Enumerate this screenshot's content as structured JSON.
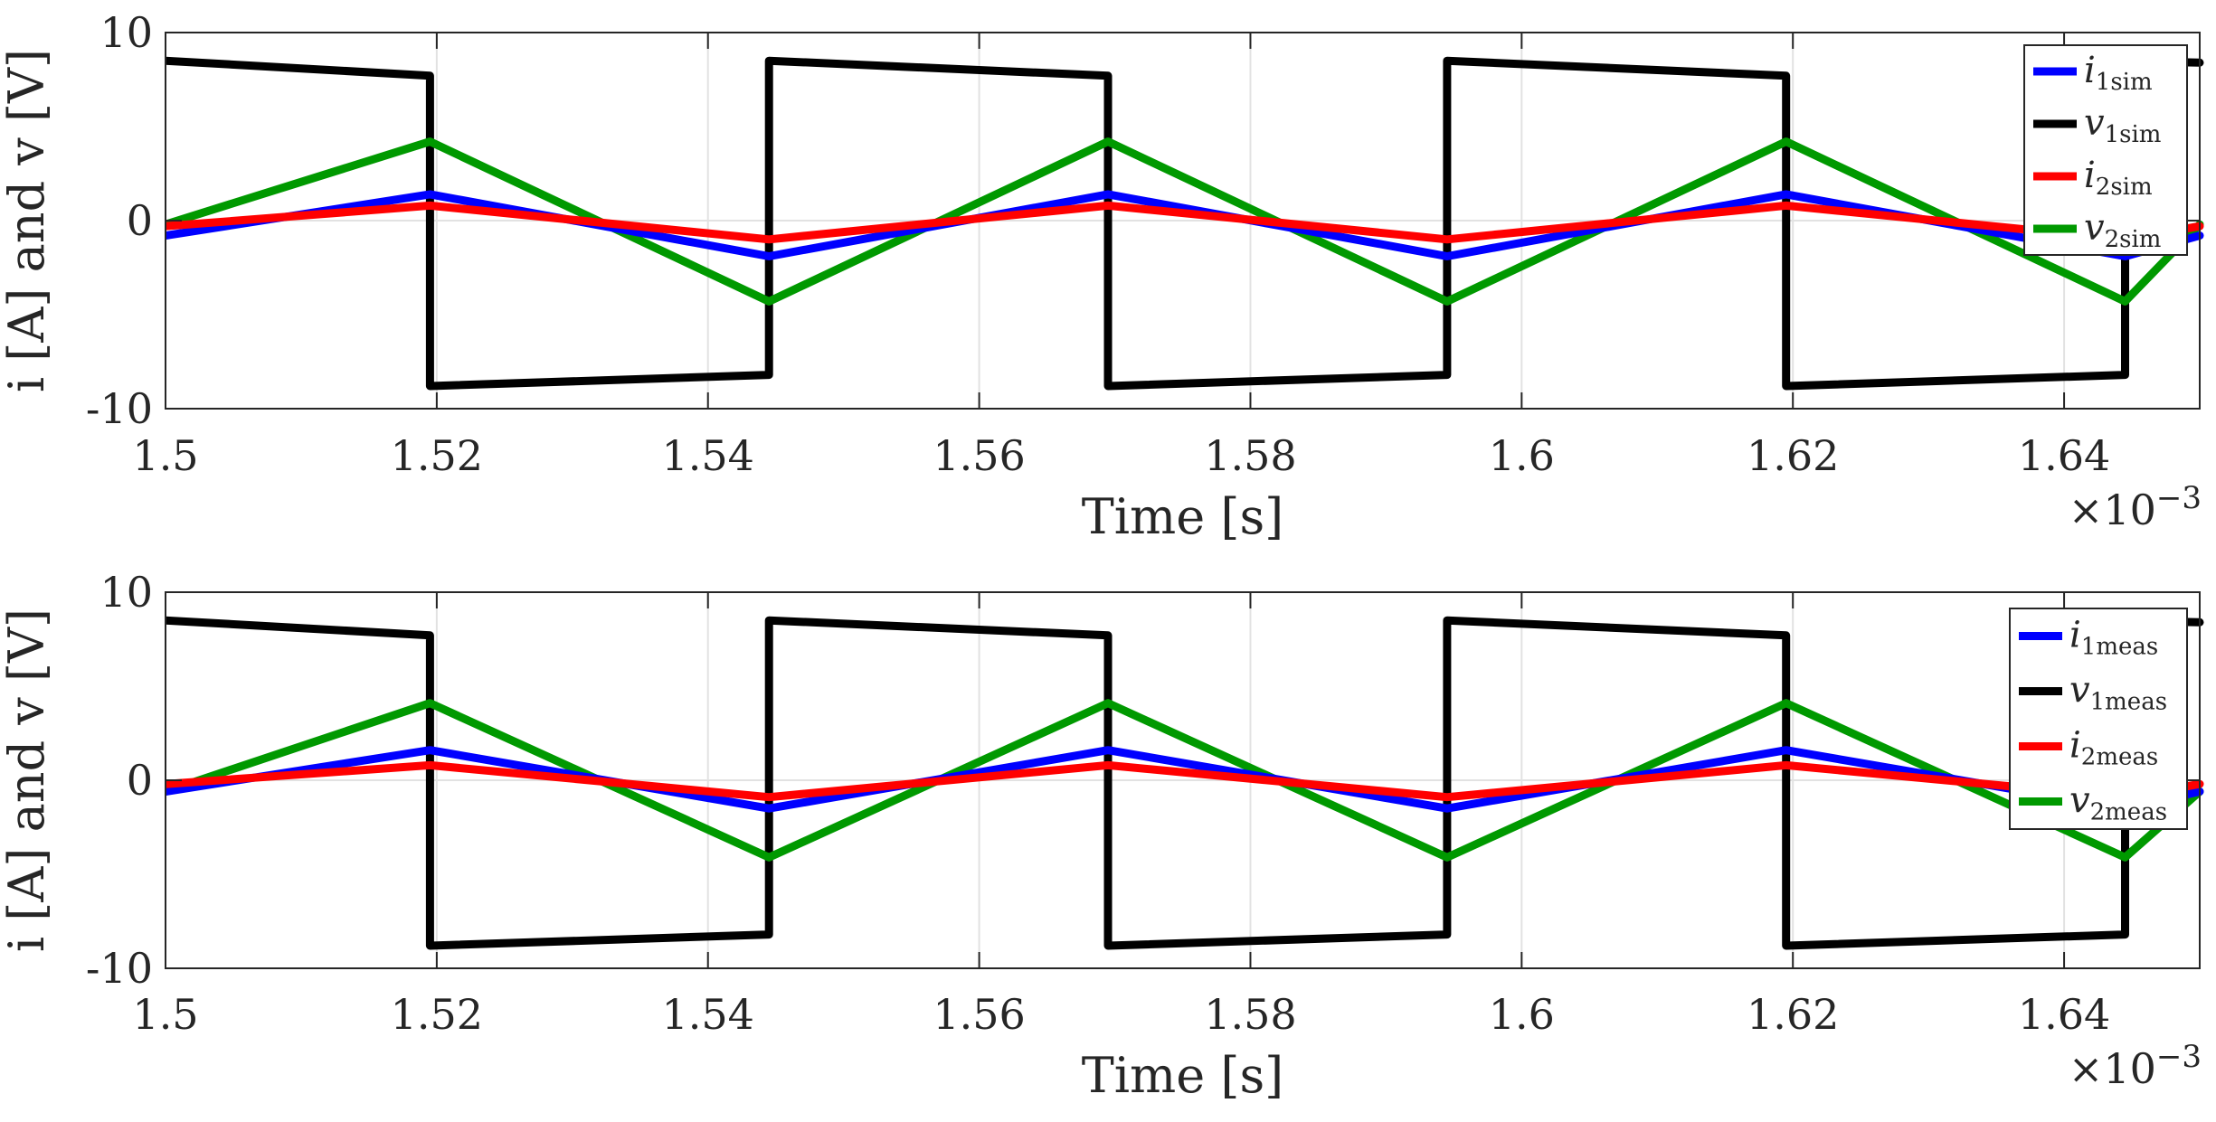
{
  "chart_data": [
    {
      "type": "line",
      "xlabel": "Time [s]",
      "ylabel": "i [A] and v [V]",
      "x_exponent_label": "×10",
      "x_exponent_power": "−3",
      "xlim": [
        1.5,
        1.65
      ],
      "ylim": [
        -10,
        10
      ],
      "xticks": [
        "1.5",
        "1.52",
        "1.54",
        "1.56",
        "1.58",
        "1.6",
        "1.62",
        "1.64"
      ],
      "yticks": [
        "10",
        "0",
        "-10"
      ],
      "grid": true,
      "legend_position": "top-right",
      "legend": [
        {
          "symbol": "i",
          "sub": "1sim",
          "color": "#0000ff"
        },
        {
          "symbol": "v",
          "sub": "1sim",
          "color": "#000000"
        },
        {
          "symbol": "i",
          "sub": "2sim",
          "color": "#ff0000"
        },
        {
          "symbol": "v",
          "sub": "2sim",
          "color": "#009900"
        }
      ],
      "series": [
        {
          "name": "i1sim",
          "color": "#0000ff",
          "x": [
            1.5,
            1.5195,
            1.5445,
            1.5695,
            1.5945,
            1.6195,
            1.6445,
            1.65
          ],
          "y": [
            -0.8,
            1.4,
            -1.9,
            1.4,
            -1.9,
            1.4,
            -1.9,
            -0.8
          ]
        },
        {
          "name": "v1sim",
          "color": "#000000",
          "x": [
            1.5,
            1.5195,
            1.5195,
            1.5445,
            1.5445,
            1.5695,
            1.5695,
            1.5945,
            1.5945,
            1.6195,
            1.6195,
            1.6445,
            1.6445,
            1.65
          ],
          "y": [
            8.5,
            7.7,
            -8.8,
            -8.2,
            8.5,
            7.7,
            -8.8,
            -8.2,
            8.5,
            7.7,
            -8.8,
            -8.2,
            8.5,
            8.4
          ]
        },
        {
          "name": "i2sim",
          "color": "#ff0000",
          "x": [
            1.5,
            1.5195,
            1.5445,
            1.5695,
            1.5945,
            1.6195,
            1.6445,
            1.65
          ],
          "y": [
            -0.3,
            0.8,
            -1.0,
            0.8,
            -1.0,
            0.8,
            -1.0,
            -0.3
          ]
        },
        {
          "name": "v2sim",
          "color": "#009900",
          "x": [
            1.5,
            1.5195,
            1.5445,
            1.5695,
            1.5945,
            1.6195,
            1.6445,
            1.65
          ],
          "y": [
            -0.2,
            4.2,
            -4.3,
            4.2,
            -4.3,
            4.2,
            -4.3,
            -0.2
          ]
        }
      ]
    },
    {
      "type": "line",
      "xlabel": "Time [s]",
      "ylabel": "i [A] and v [V]",
      "x_exponent_label": "×10",
      "x_exponent_power": "−3",
      "xlim": [
        1.5,
        1.65
      ],
      "ylim": [
        -10,
        10
      ],
      "xticks": [
        "1.5",
        "1.52",
        "1.54",
        "1.56",
        "1.58",
        "1.6",
        "1.62",
        "1.64"
      ],
      "yticks": [
        "10",
        "0",
        "-10"
      ],
      "grid": true,
      "legend_position": "top-right",
      "legend": [
        {
          "symbol": "i",
          "sub": "1meas",
          "color": "#0000ff"
        },
        {
          "symbol": "v",
          "sub": "1meas",
          "color": "#000000"
        },
        {
          "symbol": "i",
          "sub": "2meas",
          "color": "#ff0000"
        },
        {
          "symbol": "v",
          "sub": "2meas",
          "color": "#009900"
        }
      ],
      "series": [
        {
          "name": "i1meas",
          "color": "#0000ff",
          "x": [
            1.5,
            1.5195,
            1.5445,
            1.5695,
            1.5945,
            1.6195,
            1.6445,
            1.65
          ],
          "y": [
            -0.6,
            1.6,
            -1.5,
            1.6,
            -1.5,
            1.6,
            -1.5,
            -0.6
          ]
        },
        {
          "name": "v1meas",
          "color": "#000000",
          "x": [
            1.5,
            1.5195,
            1.5195,
            1.5445,
            1.5445,
            1.5695,
            1.5695,
            1.5945,
            1.5945,
            1.6195,
            1.6195,
            1.6445,
            1.6445,
            1.65
          ],
          "y": [
            8.5,
            7.7,
            -8.8,
            -8.2,
            8.5,
            7.7,
            -8.8,
            -8.2,
            8.5,
            7.7,
            -8.8,
            -8.2,
            8.5,
            8.4
          ]
        },
        {
          "name": "i2meas",
          "color": "#ff0000",
          "x": [
            1.5,
            1.5195,
            1.5445,
            1.5695,
            1.5945,
            1.6195,
            1.6445,
            1.65
          ],
          "y": [
            -0.2,
            0.8,
            -0.9,
            0.8,
            -0.9,
            0.8,
            -0.9,
            -0.2
          ]
        },
        {
          "name": "v2meas",
          "color": "#009900",
          "x": [
            1.5,
            1.5195,
            1.5445,
            1.5695,
            1.5945,
            1.6195,
            1.6445,
            1.65
          ],
          "y": [
            -0.6,
            4.1,
            -4.1,
            4.1,
            -4.1,
            4.1,
            -4.1,
            -0.6
          ]
        }
      ]
    }
  ]
}
